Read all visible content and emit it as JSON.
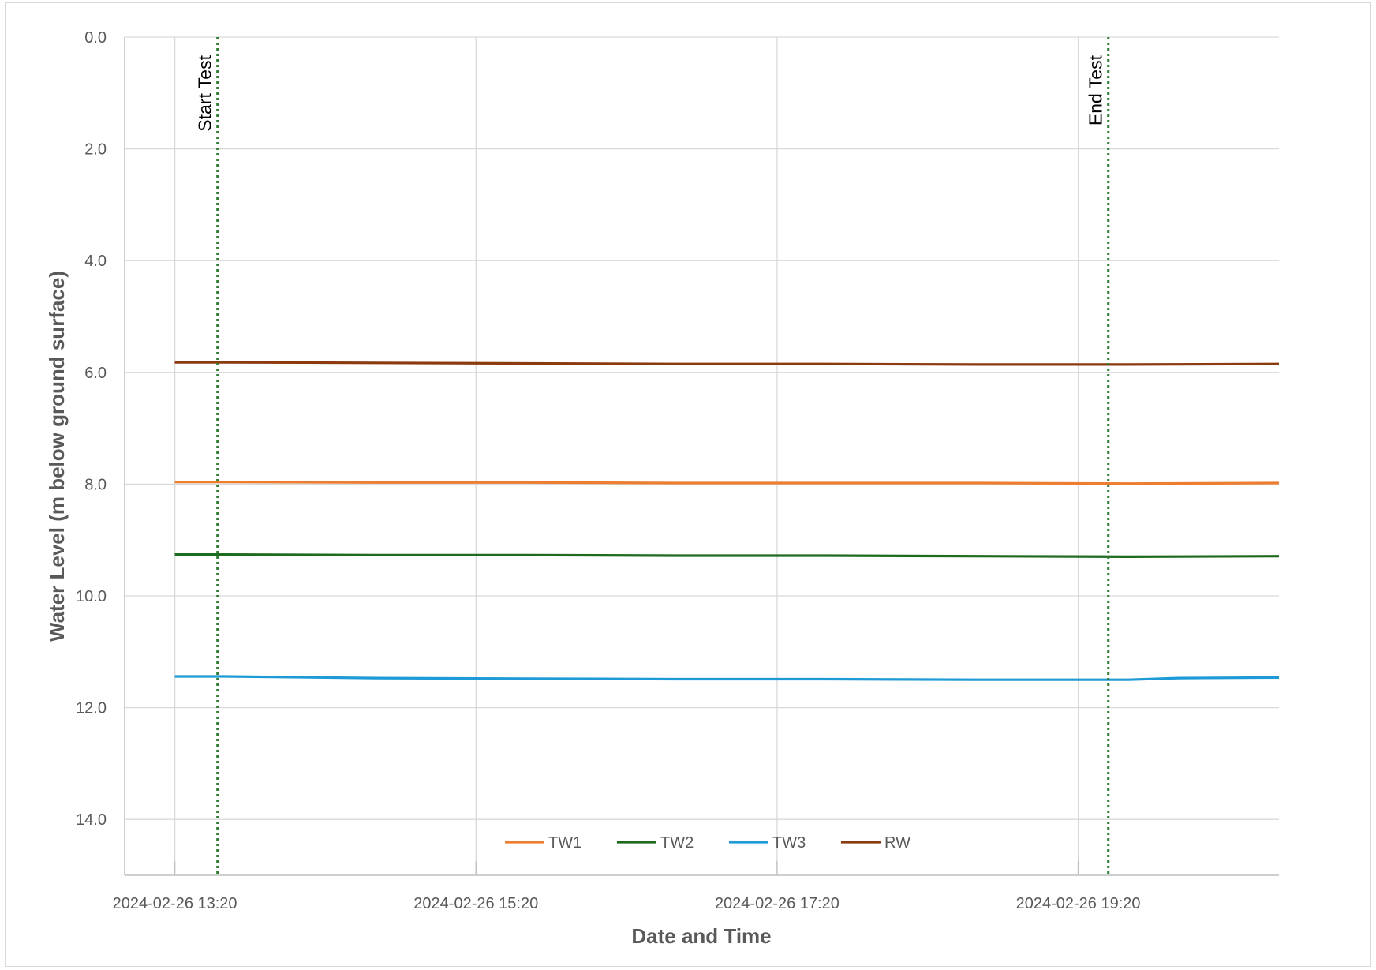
{
  "chart_data": {
    "type": "line",
    "xlabel": "Date and Time",
    "ylabel": "Water Level (m below ground surface)",
    "x_start": "2024-02-26 13:00",
    "x_end": "2024-02-26 20:40",
    "ylim": [
      0,
      15
    ],
    "y_inverted": true,
    "y_ticks": [
      "0.0",
      "2.0",
      "4.0",
      "6.0",
      "8.0",
      "10.0",
      "12.0",
      "14.0"
    ],
    "x_ticks": [
      "2024-02-26 13:20",
      "2024-02-26 15:20",
      "2024-02-26 17:20",
      "2024-02-26 19:20"
    ],
    "grid": true,
    "legend_position": "bottom-inside",
    "series": [
      {
        "name": "TW1",
        "color": "#ED7D31",
        "x": [
          "2024-02-26 13:20",
          "2024-02-26 13:40",
          "2024-02-26 14:40",
          "2024-02-26 15:40",
          "2024-02-26 16:40",
          "2024-02-26 17:40",
          "2024-02-26 18:40",
          "2024-02-26 19:40",
          "2024-02-26 20:40"
        ],
        "y": [
          7.96,
          7.96,
          7.97,
          7.97,
          7.98,
          7.98,
          7.98,
          7.99,
          7.98
        ]
      },
      {
        "name": "TW2",
        "color": "#1E6B1E",
        "x": [
          "2024-02-26 13:20",
          "2024-02-26 13:40",
          "2024-02-26 14:40",
          "2024-02-26 15:40",
          "2024-02-26 16:40",
          "2024-02-26 17:40",
          "2024-02-26 18:40",
          "2024-02-26 19:40",
          "2024-02-26 20:40"
        ],
        "y": [
          9.26,
          9.26,
          9.27,
          9.27,
          9.28,
          9.28,
          9.29,
          9.3,
          9.29
        ]
      },
      {
        "name": "TW3",
        "color": "#1E9BD7",
        "x": [
          "2024-02-26 13:20",
          "2024-02-26 13:40",
          "2024-02-26 14:40",
          "2024-02-26 15:40",
          "2024-02-26 16:40",
          "2024-02-26 17:40",
          "2024-02-26 18:40",
          "2024-02-26 19:40",
          "2024-02-26 20:00",
          "2024-02-26 20:40"
        ],
        "y": [
          11.44,
          11.44,
          11.47,
          11.48,
          11.49,
          11.49,
          11.5,
          11.5,
          11.47,
          11.46
        ]
      },
      {
        "name": "RW",
        "color": "#8B3A0E",
        "x": [
          "2024-02-26 13:20",
          "2024-02-26 13:40",
          "2024-02-26 14:40",
          "2024-02-26 15:40",
          "2024-02-26 16:40",
          "2024-02-26 17:40",
          "2024-02-26 18:40",
          "2024-02-26 19:40",
          "2024-02-26 20:40"
        ],
        "y": [
          5.82,
          5.82,
          5.83,
          5.84,
          5.85,
          5.85,
          5.86,
          5.86,
          5.85
        ]
      }
    ],
    "annotations": [
      {
        "label": "Start Test",
        "x": "2024-02-26 13:37",
        "color": "#2E7D32"
      },
      {
        "label": "End Test",
        "x": "2024-02-26 19:32",
        "color": "#2E7D32"
      }
    ]
  }
}
